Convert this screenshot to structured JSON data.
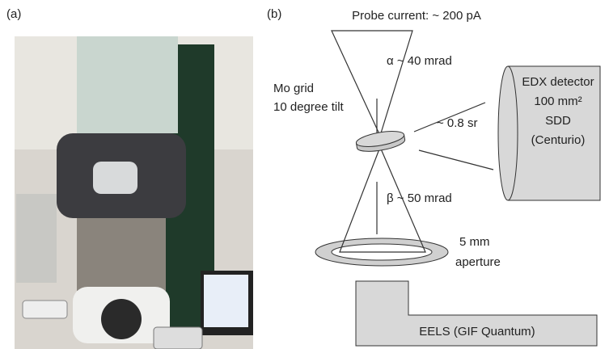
{
  "panel_a": {
    "label": "(a)"
  },
  "panel_b": {
    "label": "(b)",
    "probe_current": "Probe current: ~ 200 pA",
    "alpha": "α ~ 40 mrad",
    "grid": [
      "Mo grid",
      "10 degree tilt"
    ],
    "solid_angle": "~ 0.8 sr",
    "detector": [
      "EDX detector",
      "100 mm²",
      "SDD",
      "(Centurio)"
    ],
    "beta": "β ~ 50 mrad",
    "aperture": [
      "5 mm",
      "aperture"
    ],
    "eels": "EELS (GIF Quantum)"
  }
}
